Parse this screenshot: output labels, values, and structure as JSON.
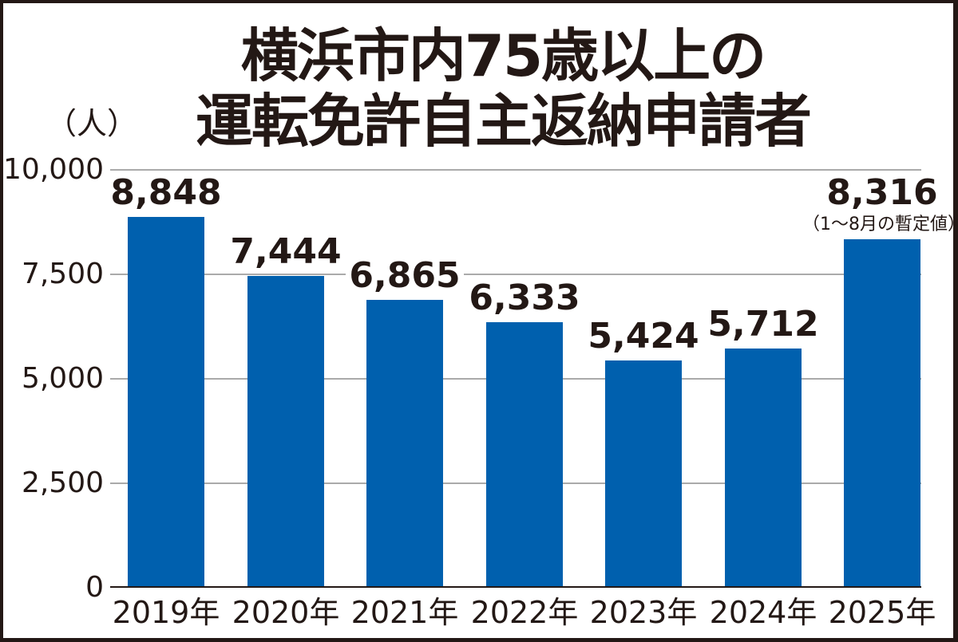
{
  "title": {
    "line1": "横浜市内75歳以上の",
    "line2": "運転免許自主返納申請者"
  },
  "unit_label": "（人）",
  "y_axis": {
    "ticks": [
      "10,000",
      "7,500",
      "5,000",
      "2,500",
      "0"
    ]
  },
  "bars": [
    {
      "year": "2019年",
      "value_label": "8,848",
      "value": 8848
    },
    {
      "year": "2020年",
      "value_label": "7,444",
      "value": 7444
    },
    {
      "year": "2021年",
      "value_label": "6,865",
      "value": 6865
    },
    {
      "year": "2022年",
      "value_label": "6,333",
      "value": 6333
    },
    {
      "year": "2023年",
      "value_label": "5,424",
      "value": 5424
    },
    {
      "year": "2024年",
      "value_label": "5,712",
      "value": 5712
    },
    {
      "year": "2025年",
      "value_label": "8,316",
      "value": 8316,
      "note": "（1～8月の暫定値）"
    }
  ],
  "colors": {
    "bar": "#0060ae",
    "text": "#231815",
    "grid": "#aaaaaa"
  },
  "chart_data": {
    "type": "bar",
    "title": "横浜市内75歳以上の運転免許自主返納申請者",
    "categories": [
      "2019年",
      "2020年",
      "2021年",
      "2022年",
      "2023年",
      "2024年",
      "2025年"
    ],
    "values": [
      8848,
      7444,
      6865,
      6333,
      5424,
      5712,
      8316
    ],
    "xlabel": "",
    "ylabel": "（人）",
    "ylim": [
      0,
      10000
    ],
    "yticks": [
      0,
      2500,
      5000,
      7500,
      10000
    ],
    "grid": true,
    "annotations": [
      {
        "category": "2025年",
        "text": "（1～8月の暫定値）"
      }
    ]
  }
}
